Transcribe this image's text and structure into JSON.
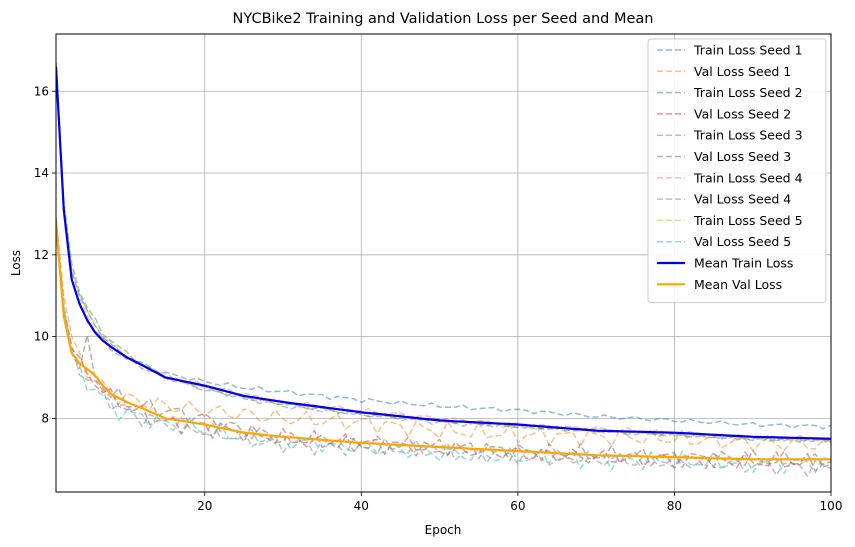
{
  "chart_data": {
    "type": "line",
    "title": "NYCBike2 Training and Validation Loss per Seed and Mean",
    "xlabel": "Epoch",
    "ylabel": "Loss",
    "xlim": [
      1,
      100
    ],
    "ylim": [
      6.2,
      17.4
    ],
    "xticks": [
      20,
      40,
      60,
      80,
      100
    ],
    "yticks": [
      8,
      10,
      12,
      14,
      16
    ],
    "grid": true,
    "legend_position": "top-right",
    "keypoints": [
      1,
      2,
      3,
      4,
      5,
      6,
      7,
      8,
      10,
      12,
      15,
      20,
      25,
      30,
      40,
      50,
      60,
      70,
      80,
      90,
      100
    ],
    "series": [
      {
        "name": "Train Loss Seed 1",
        "color": "#1f77b4",
        "style": "dashed",
        "values": [
          16.6,
          13.2,
          11.6,
          11.0,
          10.6,
          10.3,
          10.0,
          9.8,
          9.5,
          9.3,
          9.1,
          8.9,
          8.75,
          8.65,
          8.45,
          8.3,
          8.2,
          8.05,
          7.95,
          7.85,
          7.8
        ]
      },
      {
        "name": "Val Loss Seed 1",
        "color": "#ff7f0e",
        "style": "dashed",
        "values": [
          12.9,
          11.0,
          10.0,
          9.5,
          9.2,
          9.0,
          8.8,
          8.6,
          8.5,
          8.4,
          8.3,
          8.2,
          8.1,
          8.0,
          7.9,
          7.7,
          7.6,
          7.55,
          7.5,
          7.4,
          7.35
        ]
      },
      {
        "name": "Train Loss Seed 2",
        "color": "#2ca02c",
        "style": "dashed",
        "values": [
          16.7,
          13.3,
          11.8,
          11.1,
          10.7,
          10.4,
          10.1,
          9.9,
          9.6,
          9.35,
          9.0,
          8.75,
          8.5,
          8.35,
          8.1,
          7.95,
          7.8,
          7.7,
          7.6,
          7.5,
          7.45
        ]
      },
      {
        "name": "Val Loss Seed 2",
        "color": "#d62728",
        "style": "dashed",
        "values": [
          12.8,
          10.6,
          9.7,
          9.3,
          9.1,
          8.9,
          8.7,
          8.5,
          8.3,
          8.1,
          7.9,
          7.8,
          7.65,
          7.5,
          7.4,
          7.25,
          7.15,
          7.05,
          7.0,
          6.95,
          6.9
        ]
      },
      {
        "name": "Train Loss Seed 3",
        "color": "#9467bd",
        "style": "dashed",
        "values": [
          16.5,
          13.0,
          11.4,
          10.8,
          10.4,
          10.1,
          9.9,
          9.7,
          9.45,
          9.25,
          9.0,
          8.7,
          8.5,
          8.3,
          8.1,
          7.9,
          7.8,
          7.7,
          7.6,
          7.5,
          7.45
        ]
      },
      {
        "name": "Val Loss Seed 3",
        "color": "#8c564b",
        "style": "dashed",
        "values": [
          12.7,
          10.5,
          9.6,
          9.4,
          9.8,
          9.0,
          8.8,
          8.6,
          8.4,
          8.3,
          8.2,
          8.0,
          7.7,
          7.5,
          7.4,
          7.3,
          7.2,
          7.1,
          7.05,
          7.0,
          6.95
        ]
      },
      {
        "name": "Train Loss Seed 4",
        "color": "#e377c2",
        "style": "dashed",
        "values": [
          16.6,
          13.1,
          11.5,
          10.9,
          10.5,
          10.2,
          9.95,
          9.75,
          9.5,
          9.3,
          9.05,
          8.8,
          8.6,
          8.4,
          8.2,
          8.0,
          7.85,
          7.75,
          7.65,
          7.55,
          7.5
        ]
      },
      {
        "name": "Val Loss Seed 4",
        "color": "#7f7f7f",
        "style": "dashed",
        "values": [
          12.8,
          10.7,
          9.8,
          9.2,
          9.0,
          8.8,
          8.6,
          8.4,
          8.2,
          8.0,
          7.9,
          7.7,
          7.5,
          7.4,
          7.3,
          7.2,
          7.1,
          7.0,
          6.95,
          6.85,
          6.8
        ]
      },
      {
        "name": "Train Loss Seed 5",
        "color": "#bcbd22",
        "style": "dashed",
        "values": [
          16.7,
          13.2,
          11.7,
          11.0,
          10.6,
          10.3,
          10.0,
          9.85,
          9.5,
          9.3,
          9.0,
          8.75,
          8.55,
          8.35,
          8.15,
          7.95,
          7.8,
          7.7,
          7.6,
          7.5,
          7.45
        ]
      },
      {
        "name": "Val Loss Seed 5",
        "color": "#17becf",
        "style": "dashed",
        "values": [
          12.9,
          10.8,
          9.6,
          9.1,
          8.9,
          8.7,
          8.5,
          8.3,
          8.1,
          8.05,
          7.9,
          7.7,
          7.55,
          7.45,
          7.3,
          7.15,
          7.05,
          7.0,
          6.95,
          6.9,
          6.9
        ]
      },
      {
        "name": "Mean Train Loss",
        "color": "#0000ee",
        "style": "solid",
        "values": [
          16.6,
          13.1,
          11.4,
          10.8,
          10.4,
          10.1,
          9.9,
          9.75,
          9.5,
          9.3,
          9.0,
          8.8,
          8.55,
          8.4,
          8.15,
          7.95,
          7.85,
          7.7,
          7.65,
          7.55,
          7.5
        ]
      },
      {
        "name": "Mean Val Loss",
        "color": "#ffa500",
        "style": "solid",
        "values": [
          12.8,
          10.5,
          9.6,
          9.35,
          9.2,
          9.05,
          8.8,
          8.6,
          8.4,
          8.25,
          8.0,
          7.85,
          7.65,
          7.55,
          7.4,
          7.3,
          7.2,
          7.1,
          7.05,
          7.0,
          7.0
        ]
      }
    ]
  }
}
